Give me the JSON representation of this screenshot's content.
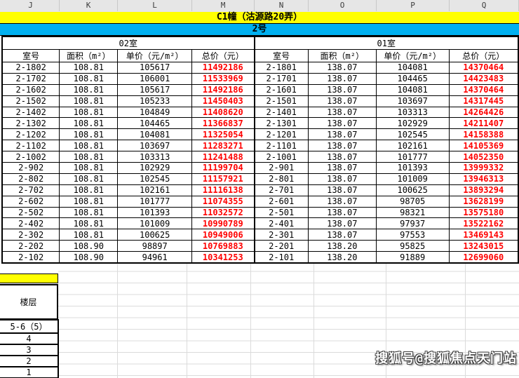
{
  "columns": [
    "J",
    "K",
    "L",
    "M",
    "N",
    "O",
    "P",
    "Q"
  ],
  "title": "C1幢（沽源路20弄）",
  "building_no": "2号",
  "tables": [
    {
      "name": "02室",
      "headers": [
        "室号",
        "面积（m²）",
        "单价（元/m²）",
        "总价（元）"
      ],
      "rows": [
        [
          "2-1802",
          "108.81",
          "105617",
          "11492186"
        ],
        [
          "2-1702",
          "108.81",
          "106001",
          "11533969"
        ],
        [
          "2-1602",
          "108.81",
          "105617",
          "11492186"
        ],
        [
          "2-1502",
          "108.81",
          "105233",
          "11450403"
        ],
        [
          "2-1402",
          "108.81",
          "104849",
          "11408620"
        ],
        [
          "2-1302",
          "108.81",
          "104465",
          "11366837"
        ],
        [
          "2-1202",
          "108.81",
          "104081",
          "11325054"
        ],
        [
          "2-1102",
          "108.81",
          "103697",
          "11283271"
        ],
        [
          "2-1002",
          "108.81",
          "103313",
          "11241488"
        ],
        [
          "2-902",
          "108.81",
          "102929",
          "11199704"
        ],
        [
          "2-802",
          "108.81",
          "102545",
          "11157921"
        ],
        [
          "2-702",
          "108.81",
          "102161",
          "11116138"
        ],
        [
          "2-602",
          "108.81",
          "101777",
          "11074355"
        ],
        [
          "2-502",
          "108.81",
          "101393",
          "11032572"
        ],
        [
          "2-402",
          "108.81",
          "101009",
          "10990789"
        ],
        [
          "2-302",
          "108.81",
          "100625",
          "10949006"
        ],
        [
          "2-202",
          "108.90",
          "98897",
          "10769883"
        ],
        [
          "2-102",
          "108.90",
          "94961",
          "10341253"
        ]
      ]
    },
    {
      "name": "01室",
      "headers": [
        "室号",
        "面积（m²）",
        "单价（元/m²）",
        "总价（元）"
      ],
      "rows": [
        [
          "2-1801",
          "138.07",
          "104081",
          "14370464"
        ],
        [
          "2-1701",
          "138.07",
          "104465",
          "14423483"
        ],
        [
          "2-1601",
          "138.07",
          "104081",
          "14370464"
        ],
        [
          "2-1501",
          "138.07",
          "103697",
          "14317445"
        ],
        [
          "2-1401",
          "138.07",
          "103313",
          "14264426"
        ],
        [
          "2-1301",
          "138.07",
          "102929",
          "14211407"
        ],
        [
          "2-1201",
          "138.07",
          "102545",
          "14158388"
        ],
        [
          "2-1101",
          "138.07",
          "102161",
          "14105369"
        ],
        [
          "2-1001",
          "138.07",
          "101777",
          "14052350"
        ],
        [
          "2-901",
          "138.07",
          "101393",
          "13999332"
        ],
        [
          "2-801",
          "138.07",
          "101009",
          "13946313"
        ],
        [
          "2-701",
          "138.07",
          "100625",
          "13893294"
        ],
        [
          "2-601",
          "138.07",
          "98705",
          "13628199"
        ],
        [
          "2-501",
          "138.07",
          "98321",
          "13575180"
        ],
        [
          "2-401",
          "138.07",
          "97937",
          "13522162"
        ],
        [
          "2-301",
          "138.07",
          "97553",
          "13469143"
        ],
        [
          "2-201",
          "138.20",
          "95825",
          "13243015"
        ],
        [
          "2-101",
          "138.20",
          "91889",
          "12699060"
        ]
      ]
    }
  ],
  "floor_panel": {
    "label": "楼层",
    "rows": [
      "5-6（5）",
      "4",
      "3",
      "2",
      "1"
    ]
  },
  "watermark": "搜狐号@搜狐焦点天门站",
  "colors": {
    "title_bg": "#FFFF00",
    "subtitle_bg": "#00B0F0",
    "price_text": "#FF0000",
    "header_bg": "#E6E6E6",
    "grid_line": "#DBDBDB",
    "border": "#000000"
  }
}
